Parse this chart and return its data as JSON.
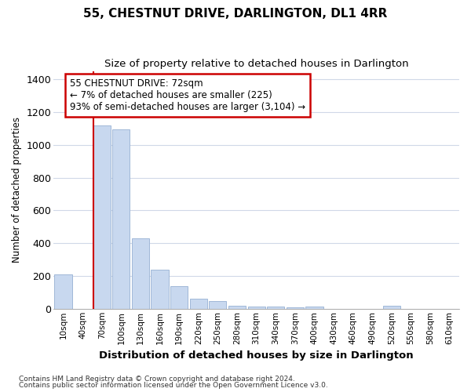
{
  "title": "55, CHESTNUT DRIVE, DARLINGTON, DL1 4RR",
  "subtitle": "Size of property relative to detached houses in Darlington",
  "xlabel": "Distribution of detached houses by size in Darlington",
  "ylabel": "Number of detached properties",
  "footer_line1": "Contains HM Land Registry data © Crown copyright and database right 2024.",
  "footer_line2": "Contains public sector information licensed under the Open Government Licence v3.0.",
  "annotation_title": "55 CHESTNUT DRIVE: 72sqm",
  "annotation_line1": "← 7% of detached houses are smaller (225)",
  "annotation_line2": "93% of semi-detached houses are larger (3,104) →",
  "bar_categories": [
    "10sqm",
    "40sqm",
    "70sqm",
    "100sqm",
    "130sqm",
    "160sqm",
    "190sqm",
    "220sqm",
    "250sqm",
    "280sqm",
    "310sqm",
    "340sqm",
    "370sqm",
    "400sqm",
    "430sqm",
    "460sqm",
    "490sqm",
    "520sqm",
    "550sqm",
    "580sqm",
    "610sqm"
  ],
  "bar_values": [
    210,
    0,
    1120,
    1095,
    430,
    240,
    140,
    60,
    45,
    20,
    15,
    15,
    10,
    15,
    0,
    0,
    0,
    20,
    0,
    0,
    0
  ],
  "bar_color": "#c8d8ef",
  "bar_edge_color": "#a0b8d8",
  "vline_color": "#cc0000",
  "annotation_box_color": "#cc0000",
  "background_color": "#ffffff",
  "plot_bg_color": "#ffffff",
  "grid_color": "#d0d8e8",
  "ylim": [
    0,
    1450
  ],
  "yticks": [
    0,
    200,
    400,
    600,
    800,
    1000,
    1200,
    1400
  ]
}
